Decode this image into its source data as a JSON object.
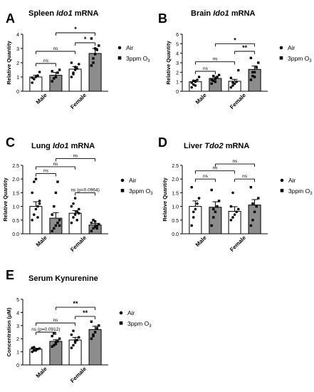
{
  "legend": {
    "air": "Air",
    "o3": "3ppm O",
    "o3_sub": "3"
  },
  "chart_data": [
    {
      "panel": "A",
      "type": "bar",
      "title": "Spleen ",
      "title_gene": "Ido1",
      "title_suffix": " mRNA",
      "ylabel": "Relative Quantity",
      "categories": [
        "Male",
        "Female"
      ],
      "ylim": [
        0,
        4
      ],
      "yticks": [
        0,
        1,
        2,
        3,
        4
      ],
      "series": [
        {
          "name": "Air",
          "values": [
            1.0,
            1.55
          ],
          "errors": [
            0.12,
            0.18
          ]
        },
        {
          "name": "3ppm O3",
          "values": [
            1.12,
            2.65
          ],
          "errors": [
            0.2,
            0.35
          ]
        }
      ],
      "points": [
        [
          [
            0.6,
            0.85,
            1.0,
            1.1,
            1.35,
            0.95
          ],
          [
            0.7,
            0.9,
            1.0,
            1.3,
            1.5,
            1.4
          ]
        ],
        [
          [
            1.0,
            1.3,
            1.5,
            1.6,
            1.9,
            2.0,
            1.2,
            1.7
          ],
          [
            1.8,
            2.3,
            2.6,
            2.9,
            3.2,
            3.7,
            2.0,
            3.0
          ]
        ]
      ],
      "comparisons": [
        {
          "label": "ns",
          "from": [
            0,
            0
          ],
          "to": [
            0,
            1
          ],
          "y": 1.95
        },
        {
          "label": "ns",
          "from": [
            0,
            0
          ],
          "to": [
            1,
            0
          ],
          "y": 2.8
        },
        {
          "label": "*",
          "from": [
            1,
            0
          ],
          "to": [
            1,
            1
          ],
          "y": 3.4
        },
        {
          "label": "*",
          "from": [
            0,
            1
          ],
          "to": [
            1,
            1
          ],
          "y": 4.1
        }
      ]
    },
    {
      "panel": "B",
      "type": "bar",
      "title": "Brain ",
      "title_gene": "Ido1",
      "title_suffix": " mRNA",
      "ylabel": "Relative Quantity",
      "categories": [
        "Male",
        "Female"
      ],
      "ylim": [
        0,
        6
      ],
      "yticks": [
        0,
        1,
        2,
        3,
        4,
        5,
        6
      ],
      "series": [
        {
          "name": "Air",
          "values": [
            1.0,
            1.05
          ],
          "errors": [
            0.15,
            0.2
          ]
        },
        {
          "name": "3ppm O3",
          "values": [
            1.35,
            2.3
          ],
          "errors": [
            0.15,
            0.35
          ]
        }
      ],
      "points": [
        [
          [
            0.4,
            0.7,
            1.0,
            1.2,
            1.5,
            0.9,
            1.1,
            0.6
          ],
          [
            0.8,
            1.1,
            1.3,
            1.5,
            1.7,
            1.2,
            1.6,
            1.0
          ]
        ],
        [
          [
            0.4,
            0.6,
            0.8,
            1.0,
            2.2,
            1.4,
            0.9
          ],
          [
            1.2,
            1.6,
            2.0,
            2.5,
            3.0,
            3.5,
            2.0,
            1.5
          ]
        ]
      ],
      "comparisons": [
        {
          "label": "ns",
          "from": [
            0,
            0
          ],
          "to": [
            0,
            1
          ],
          "y": 2.1
        },
        {
          "label": "ns",
          "from": [
            0,
            0
          ],
          "to": [
            1,
            0
          ],
          "y": 3.1
        },
        {
          "label": "**",
          "from": [
            1,
            0
          ],
          "to": [
            1,
            1
          ],
          "y": 4.2
        },
        {
          "label": "*",
          "from": [
            0,
            1
          ],
          "to": [
            1,
            1
          ],
          "y": 5.0
        }
      ]
    },
    {
      "panel": "C",
      "type": "bar",
      "title": "Lung ",
      "title_gene": "Ido1",
      "title_suffix": " mRNA",
      "ylabel": "Relative Quantity",
      "categories": [
        "Male",
        "Female"
      ],
      "ylim": [
        0,
        2.5
      ],
      "yticks": [
        0.0,
        0.5,
        1.0,
        1.5,
        2.0,
        2.5
      ],
      "ytick_labels": [
        "0.0",
        "0.5",
        "1.0",
        "1.5",
        "2.0",
        "2.5"
      ],
      "series": [
        {
          "name": "Air",
          "values": [
            1.0,
            0.75
          ],
          "errors": [
            0.17,
            0.1
          ]
        },
        {
          "name": "3ppm O3",
          "values": [
            0.57,
            0.32
          ],
          "errors": [
            0.2,
            0.06
          ]
        }
      ],
      "points": [
        [
          [
            0.5,
            0.7,
            0.9,
            1.0,
            1.2,
            1.5,
            1.9,
            2.0,
            0.6,
            1.1
          ],
          [
            0.1,
            0.2,
            0.3,
            0.4,
            0.5,
            0.7,
            1.0,
            1.5,
            1.9,
            0.3
          ]
        ],
        [
          [
            0.4,
            0.6,
            0.7,
            0.8,
            0.9,
            1.0,
            1.1,
            1.3,
            0.5,
            0.75
          ],
          [
            0.1,
            0.2,
            0.25,
            0.3,
            0.35,
            0.4,
            0.5,
            0.45,
            0.2
          ]
        ]
      ],
      "comparisons": [
        {
          "label": "ns",
          "from": [
            0,
            0
          ],
          "to": [
            0,
            1
          ],
          "y": 2.2
        },
        {
          "label": "ns",
          "from": [
            0,
            0
          ],
          "to": [
            1,
            0
          ],
          "y": 2.45
        },
        {
          "label": "ns (p=0.0964)",
          "from": [
            1,
            0
          ],
          "to": [
            1,
            1
          ],
          "y": 1.5
        },
        {
          "label": "ns",
          "from": [
            0,
            1
          ],
          "to": [
            1,
            1
          ],
          "y": 2.75
        }
      ]
    },
    {
      "panel": "D",
      "type": "bar",
      "title": "Liver ",
      "title_gene": "Tdo2",
      "title_suffix": " mRNA",
      "ylabel": "Relative Quantity",
      "categories": [
        "Male",
        "Female"
      ],
      "ylim": [
        0,
        2.5
      ],
      "yticks": [
        0.0,
        0.5,
        1.0,
        1.5,
        2.0,
        2.5
      ],
      "ytick_labels": [
        "0.0",
        "0.5",
        "1.0",
        "1.5",
        "2.0",
        "2.5"
      ],
      "series": [
        {
          "name": "Air",
          "values": [
            1.0,
            0.82
          ],
          "errors": [
            0.2,
            0.17
          ]
        },
        {
          "name": "3ppm O3",
          "values": [
            0.97,
            1.05
          ],
          "errors": [
            0.2,
            0.2
          ]
        }
      ],
      "points": [
        [
          [
            0.3,
            0.6,
            0.9,
            1.1,
            1.3,
            1.7,
            0.8
          ],
          [
            0.3,
            0.6,
            0.8,
            1.0,
            1.2,
            1.6,
            0.9
          ]
        ],
        [
          [
            0.5,
            0.6,
            0.7,
            0.8,
            0.9,
            1.0,
            1.5
          ],
          [
            0.3,
            0.5,
            0.8,
            1.0,
            1.3,
            1.7,
            1.1
          ]
        ]
      ],
      "comparisons": [
        {
          "label": "ns",
          "from": [
            0,
            0
          ],
          "to": [
            0,
            1
          ],
          "y": 2.0
        },
        {
          "label": "ns",
          "from": [
            0,
            0
          ],
          "to": [
            1,
            0
          ],
          "y": 2.3
        },
        {
          "label": "ns",
          "from": [
            1,
            0
          ],
          "to": [
            1,
            1
          ],
          "y": 2.0
        },
        {
          "label": "ns",
          "from": [
            0,
            1
          ],
          "to": [
            1,
            1
          ],
          "y": 2.55
        }
      ]
    },
    {
      "panel": "E",
      "type": "bar",
      "title": "Serum Kynurenine",
      "title_gene": "",
      "title_suffix": "",
      "ylabel": "Concentration (μM)",
      "categories": [
        "Male",
        "Female"
      ],
      "ylim": [
        0,
        5
      ],
      "yticks": [
        0,
        1,
        2,
        3,
        4,
        5
      ],
      "series": [
        {
          "name": "Air",
          "values": [
            1.2,
            1.9
          ],
          "errors": [
            0.07,
            0.2
          ]
        },
        {
          "name": "3ppm O3",
          "values": [
            1.8,
            2.7
          ],
          "errors": [
            0.12,
            0.25
          ]
        }
      ],
      "points": [
        [
          [
            1.0,
            1.1,
            1.15,
            1.2,
            1.25,
            1.3,
            1.35,
            1.1
          ],
          [
            1.4,
            1.5,
            1.7,
            1.8,
            2.0,
            2.2,
            2.4,
            1.6
          ]
        ],
        [
          [
            1.3,
            1.5,
            1.7,
            1.9,
            2.1,
            2.3,
            2.6,
            1.8
          ],
          [
            2.0,
            2.3,
            2.5,
            2.8,
            3.0,
            3.3,
            2.2
          ]
        ]
      ],
      "comparisons": [
        {
          "label": "ns (p=0.0912)",
          "from": [
            0,
            0
          ],
          "to": [
            0,
            1
          ],
          "y": 2.5
        },
        {
          "label": "ns",
          "from": [
            0,
            0
          ],
          "to": [
            1,
            0
          ],
          "y": 3.2
        },
        {
          "label": "**",
          "from": [
            1,
            0
          ],
          "to": [
            1,
            1
          ],
          "y": 3.7
        },
        {
          "label": "**",
          "from": [
            0,
            1
          ],
          "to": [
            1,
            1
          ],
          "y": 4.4
        }
      ]
    }
  ]
}
